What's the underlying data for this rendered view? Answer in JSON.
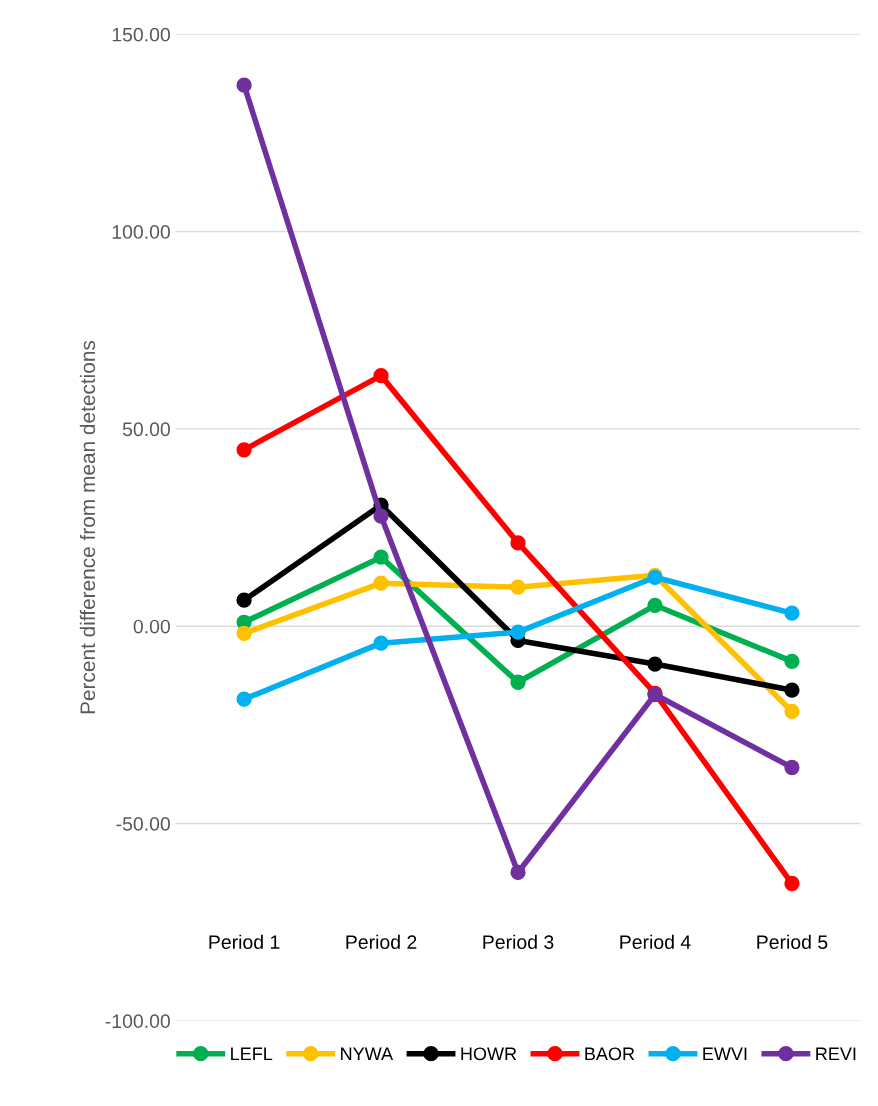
{
  "chart_data": {
    "type": "line",
    "ylabel": "Percent difference from mean detections",
    "categories": [
      "Period 1",
      "Period 2",
      "Period 3",
      "Period 4",
      "Period 5"
    ],
    "series": [
      {
        "name": "LEFL",
        "color": "#00b050",
        "values": [
          1.0,
          17.5,
          -14.2,
          5.3,
          -8.9
        ]
      },
      {
        "name": "NYWA",
        "color": "#ffc000",
        "values": [
          -1.8,
          10.9,
          9.9,
          12.9,
          -21.6
        ]
      },
      {
        "name": "HOWR",
        "color": "#000000",
        "values": [
          6.6,
          30.7,
          -3.6,
          -9.6,
          -16.2
        ]
      },
      {
        "name": "BAOR",
        "color": "#ff0000",
        "values": [
          44.7,
          63.5,
          21.1,
          -17.0,
          -65.2
        ]
      },
      {
        "name": "EWVI",
        "color": "#00b0f0",
        "values": [
          -18.5,
          -4.3,
          -1.5,
          12.4,
          3.3
        ]
      },
      {
        "name": "REVI",
        "color": "#7030a0",
        "values": [
          137.1,
          27.9,
          -62.4,
          -17.3,
          -35.8
        ]
      }
    ],
    "ylim": [
      -100,
      150
    ],
    "yticks": [
      {
        "value": -100,
        "label": "-100.00"
      },
      {
        "value": -50,
        "label": "-50.00"
      },
      {
        "value": 0,
        "label": "0.00"
      },
      {
        "value": 50,
        "label": "50.00"
      },
      {
        "value": 100,
        "label": "100.00"
      },
      {
        "value": 150,
        "label": "150.00"
      }
    ],
    "grid": "y",
    "legend": "bottom",
    "marker": "circle",
    "line_style": "solid"
  }
}
